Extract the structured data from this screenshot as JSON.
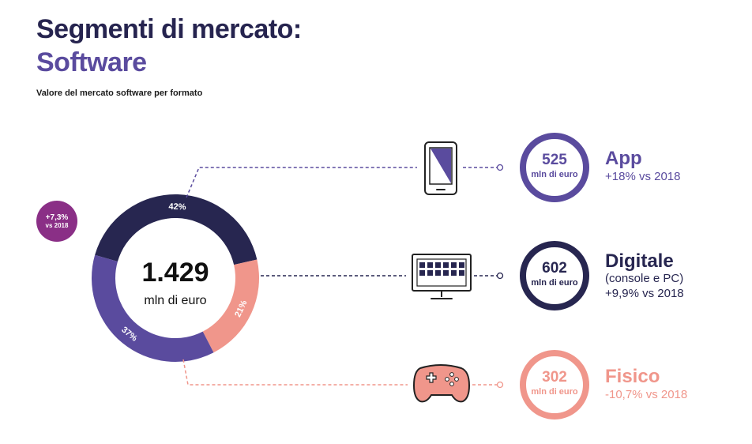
{
  "title": {
    "line1": "Segmenti di mercato:",
    "line2": "Software"
  },
  "subtitle": "Valore del mercato software per formato",
  "badge": {
    "change": "+7,3%",
    "ref": "vs 2018"
  },
  "colors": {
    "app": "#5a4b9e",
    "digitale": "#272650",
    "fisico": "#f0968b",
    "badge": "#8a2f86"
  },
  "chart_data": {
    "type": "pie",
    "variant": "donut",
    "center_value": "1.429",
    "center_unit": "mln di euro",
    "categories": [
      "App",
      "Digitale",
      "Fisico"
    ],
    "values": [
      37,
      42,
      21
    ],
    "value_labels": [
      "37%",
      "42%",
      "21%"
    ],
    "unit": "%"
  },
  "segments": [
    {
      "key": "app",
      "amount": "525",
      "unit": "mln di euro",
      "name": "App",
      "detail": "",
      "change": "+18% vs 2018",
      "icon": "smartphone-icon"
    },
    {
      "key": "digitale",
      "amount": "602",
      "unit": "mln di euro",
      "name": "Digitale",
      "detail": "(console e PC)",
      "change": "+9,9% vs 2018",
      "icon": "monitor-icon"
    },
    {
      "key": "fisico",
      "amount": "302",
      "unit": "mln di euro",
      "name": "Fisico",
      "detail": "",
      "change": "-10,7% vs 2018",
      "icon": "gamepad-icon"
    }
  ]
}
